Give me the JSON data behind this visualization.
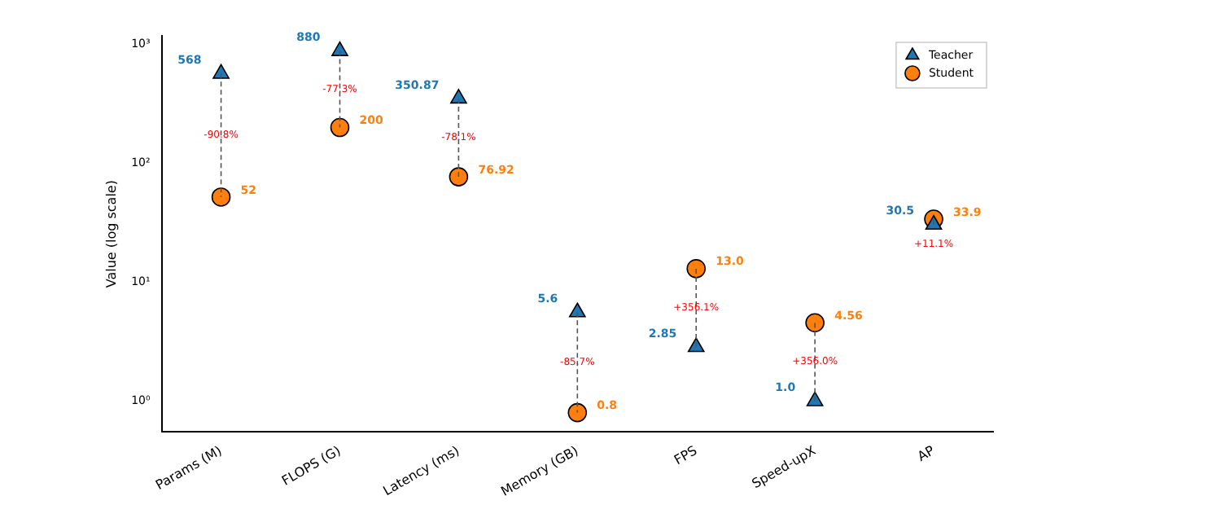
{
  "chart_data": {
    "type": "scatter",
    "ylabel": "Value (log scale)",
    "log": "y",
    "grid": false,
    "legend": "top right",
    "categories": [
      "Params (M)",
      "FLOPS (G)",
      "Latency (ms)",
      "Memory (GB)",
      "FPS",
      "Speed-upX",
      "AP"
    ],
    "ylim": [
      0.55,
      1180
    ],
    "yticks": [
      {
        "value": 1,
        "label": "10⁰"
      },
      {
        "value": 10,
        "label": "10¹"
      },
      {
        "value": 100,
        "label": "10²"
      },
      {
        "value": 1000,
        "label": "10³"
      }
    ],
    "series": [
      {
        "name": "Teacher",
        "color": "#1f77b4",
        "marker": "triangle",
        "values": [
          568,
          880,
          350.87,
          5.6,
          2.85,
          1.0,
          30.5
        ],
        "value_labels": [
          "568",
          "880",
          "350.87",
          "5.6",
          "2.85",
          "1.0",
          "30.5"
        ]
      },
      {
        "name": "Student",
        "color": "#ff7f0e",
        "marker": "circle",
        "values": [
          52,
          200,
          76.92,
          0.8,
          13.0,
          4.56,
          33.9
        ],
        "value_labels": [
          "52",
          "200",
          "76.92",
          "0.8",
          "13.0",
          "4.56",
          "33.9"
        ]
      }
    ],
    "annotations": [
      "-90.8%",
      "-77.3%",
      "-78.1%",
      "-85.7%",
      "+356.1%",
      "+356.0%",
      "+11.1%"
    ]
  }
}
